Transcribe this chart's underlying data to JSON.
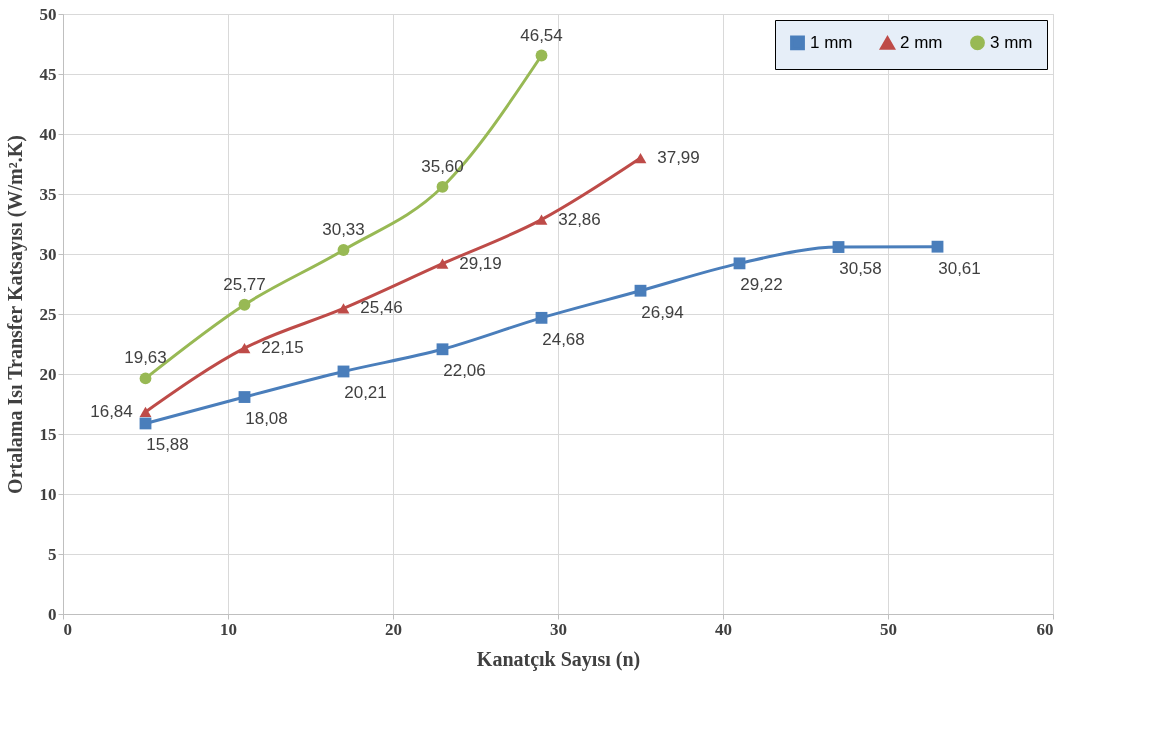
{
  "chart_data": {
    "type": "line",
    "xlabel": "Kanatçık Sayısı (n)",
    "ylabel": "Ortalama Isı Transfer Katsayısı (W/m².K)",
    "xlim": [
      0,
      60
    ],
    "xticks": [
      0,
      10,
      20,
      30,
      40,
      50,
      60
    ],
    "ylim": [
      0,
      50
    ],
    "yticks": [
      0,
      5,
      10,
      15,
      20,
      25,
      30,
      35,
      40,
      45,
      50
    ],
    "grid": true,
    "legend": "top right",
    "series": [
      {
        "name": "1 mm",
        "color": "#4a7ebb",
        "marker": "square",
        "x": [
          5,
          11,
          17,
          23,
          29,
          35,
          41,
          47,
          53
        ],
        "values": [
          15.88,
          18.08,
          20.21,
          22.06,
          24.68,
          26.94,
          29.22,
          30.58,
          30.61
        ],
        "value_labels": [
          "15,88",
          "18,08",
          "20,21",
          "22,06",
          "24,68",
          "26,94",
          "29,22",
          "30,58",
          "30,61"
        ]
      },
      {
        "name": "2 mm",
        "color": "#be4b48",
        "marker": "triangle",
        "x": [
          5,
          11,
          17,
          23,
          29,
          35
        ],
        "values": [
          16.84,
          22.15,
          25.46,
          29.19,
          32.86,
          37.99
        ],
        "value_labels": [
          "16,84",
          "22,15",
          "25,46",
          "29,19",
          "32,86",
          "37,99"
        ]
      },
      {
        "name": "3 mm",
        "color": "#98b954",
        "marker": "circle",
        "x": [
          5,
          11,
          17,
          23,
          29
        ],
        "values": [
          19.63,
          25.77,
          30.33,
          35.6,
          46.54
        ],
        "value_labels": [
          "19,63",
          "25,77",
          "30,33",
          "35,60",
          "46,54"
        ]
      }
    ]
  }
}
